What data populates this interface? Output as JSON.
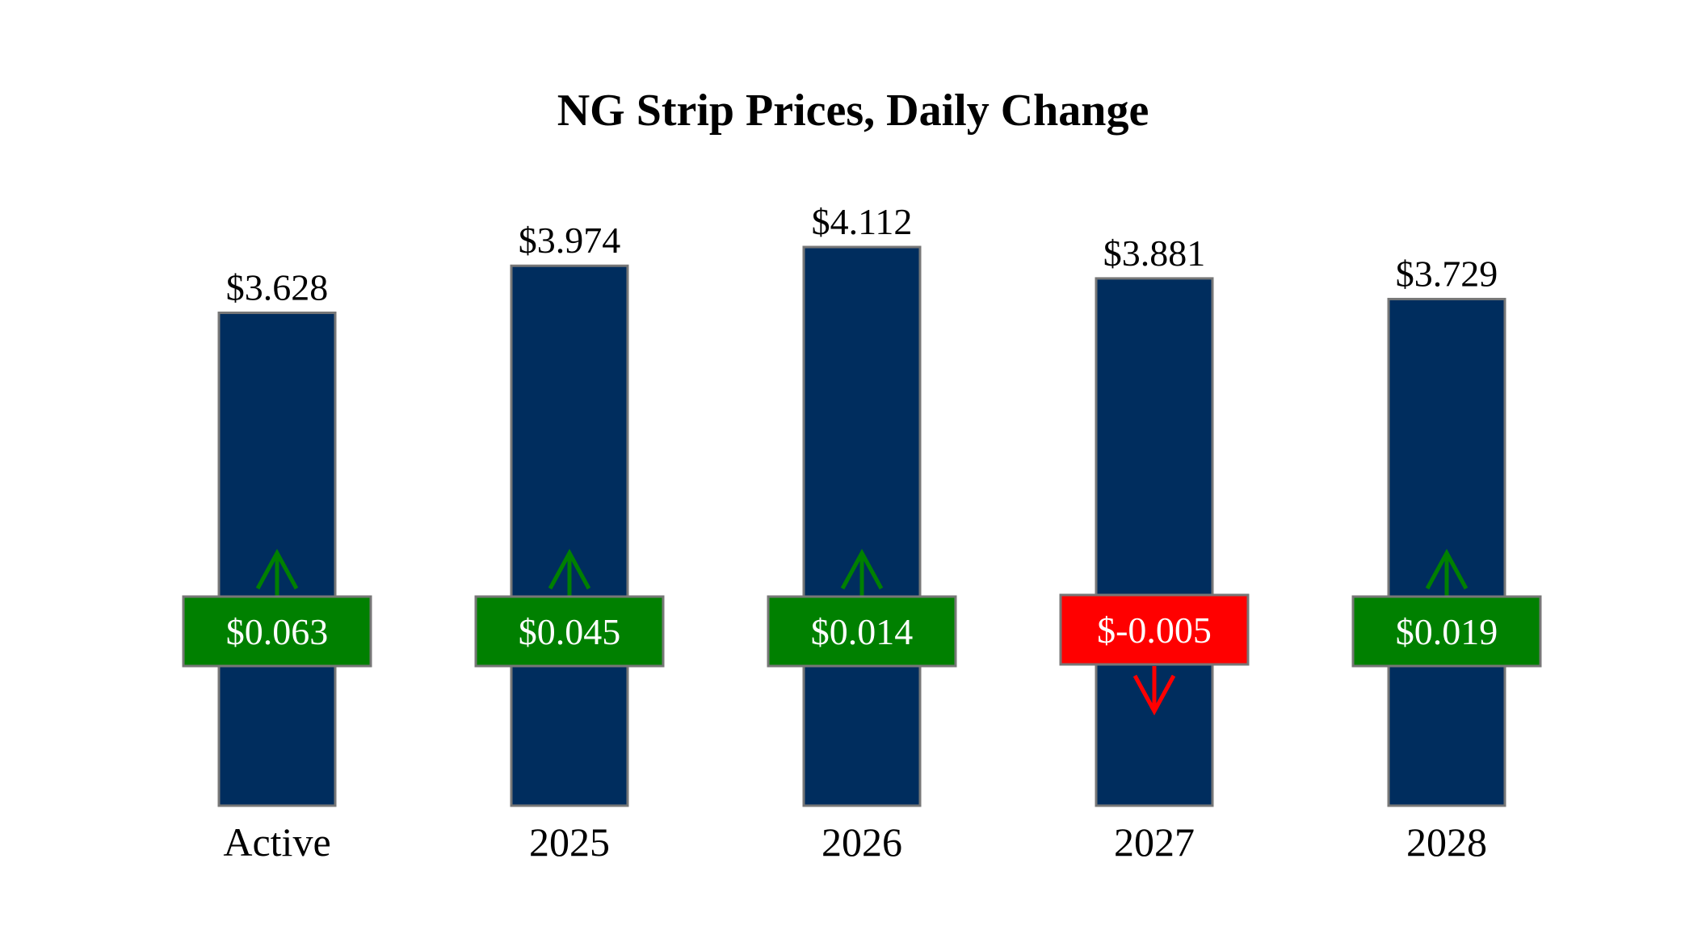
{
  "chart_data": {
    "type": "bar",
    "title": "NG Strip Prices, Daily Change",
    "categories": [
      "Active",
      "2025",
      "2026",
      "2027",
      "2028"
    ],
    "series": [
      {
        "values": [
          3.628,
          3.974,
          4.112,
          3.881,
          3.729
        ],
        "labels": [
          "$3.628",
          "$3.974",
          "$4.112",
          "$3.881",
          "$3.729"
        ]
      }
    ],
    "changes": [
      {
        "value": 0.063,
        "label": "$0.063",
        "direction": "up"
      },
      {
        "value": 0.045,
        "label": "$0.045",
        "direction": "up"
      },
      {
        "value": 0.014,
        "label": "$0.014",
        "direction": "up"
      },
      {
        "value": -0.005,
        "label": "$-0.005",
        "direction": "down"
      },
      {
        "value": 0.019,
        "label": "$0.019",
        "direction": "up"
      }
    ],
    "ylim": [
      0,
      4.112
    ],
    "grid": false,
    "legend": "none",
    "colors": {
      "bar": "#002D5E",
      "bar_edge": "#777777",
      "up": "#008000",
      "down": "#FF0000",
      "box_edge": "#777777"
    }
  }
}
